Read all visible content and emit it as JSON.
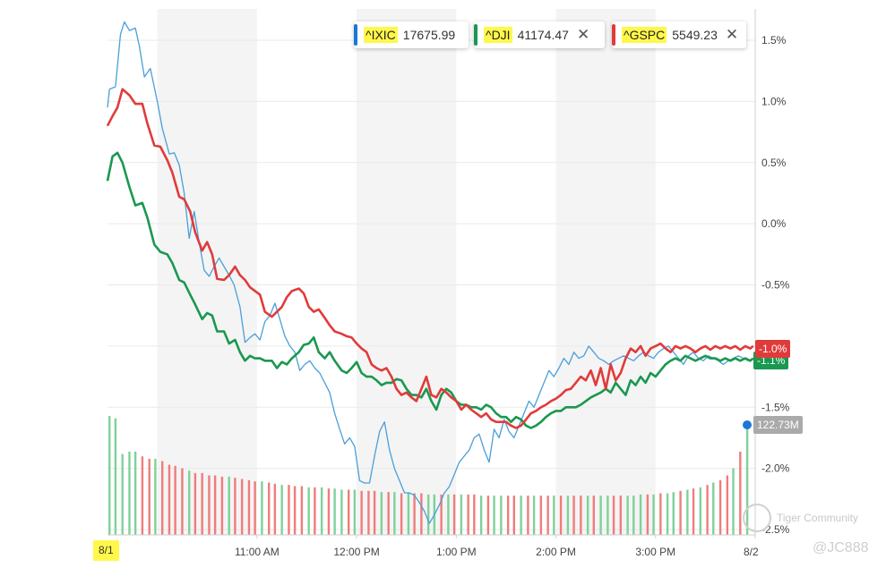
{
  "legend": [
    {
      "symbol": "^IXIC",
      "value": "17675.99",
      "color": "#1a78d6",
      "closable": false
    },
    {
      "symbol": "^DJI",
      "value": "41174.47",
      "color": "#1a9850",
      "closable": true
    },
    {
      "symbol": "^GSPC",
      "value": "5549.23",
      "color": "#e03b3b",
      "closable": true
    }
  ],
  "badges": {
    "red": "-1.0%",
    "green": "-1.1%",
    "volume": "122.73M"
  },
  "watermark": {
    "brand": "Tiger Community",
    "handle": "@JC888"
  },
  "chart_data": {
    "type": "line",
    "x_tick_labels": [
      "8/1",
      "11:00 AM",
      "12:00 PM",
      "1:00 PM",
      "2:00 PM",
      "3:00 PM",
      "8/2"
    ],
    "y_tick_labels": [
      "1.5%",
      "1.0%",
      "0.5%",
      "0.0%",
      "-0.5%",
      "-1.0%",
      "-1.5%",
      "-2.0%",
      "-2.5%"
    ],
    "ylim": [
      -2.5,
      1.75
    ],
    "x_range_hours": [
      9.5,
      16.0
    ],
    "grid": true,
    "series": [
      {
        "name": "^IXIC",
        "color": "#4a9fd9",
        "x": [
          9.5,
          9.52,
          9.58,
          9.63,
          9.67,
          9.72,
          9.78,
          9.82,
          9.87,
          9.93,
          10.0,
          10.05,
          10.12,
          10.17,
          10.22,
          10.27,
          10.32,
          10.37,
          10.42,
          10.47,
          10.52,
          10.57,
          10.62,
          10.67,
          10.72,
          10.77,
          10.83,
          10.88,
          10.93,
          10.98,
          11.03,
          11.08,
          11.13,
          11.18,
          11.23,
          11.28,
          11.33,
          11.38,
          11.43,
          11.48,
          11.53,
          11.58,
          11.63,
          11.68,
          11.73,
          11.78,
          11.83,
          11.88,
          11.93,
          11.98,
          12.03,
          12.08,
          12.13,
          12.18,
          12.23,
          12.28,
          12.33,
          12.38,
          12.43,
          12.48,
          12.53,
          12.58,
          12.63,
          12.68,
          12.73,
          12.78,
          12.83,
          12.88,
          12.93,
          12.98,
          13.03,
          13.08,
          13.13,
          13.18,
          13.23,
          13.28,
          13.33,
          13.38,
          13.43,
          13.48,
          13.53,
          13.58,
          13.63,
          13.68,
          13.73,
          13.78,
          13.83,
          13.88,
          13.93,
          13.98,
          14.03,
          14.08,
          14.13,
          14.18,
          14.23,
          14.28,
          14.33,
          14.38,
          14.43,
          14.48,
          14.53,
          14.58,
          14.63,
          14.68,
          14.73,
          14.78,
          14.83,
          14.88,
          14.93,
          14.98,
          15.03,
          15.08,
          15.13,
          15.18,
          15.23,
          15.28,
          15.33,
          15.38,
          15.43,
          15.48,
          15.53,
          15.58,
          15.63,
          15.68,
          15.73,
          15.78,
          15.83,
          15.88,
          15.93,
          15.98
        ],
        "values": [
          0.95,
          1.1,
          1.12,
          1.55,
          1.65,
          1.58,
          1.6,
          1.45,
          1.2,
          1.27,
          1.0,
          0.78,
          0.57,
          0.58,
          0.48,
          0.25,
          -0.12,
          0.1,
          -0.15,
          -0.38,
          -0.43,
          -0.35,
          -0.28,
          -0.35,
          -0.42,
          -0.5,
          -0.68,
          -0.97,
          -0.93,
          -0.9,
          -0.95,
          -0.8,
          -0.75,
          -0.65,
          -0.78,
          -0.92,
          -1.0,
          -1.05,
          -1.2,
          -1.15,
          -1.12,
          -1.18,
          -1.22,
          -1.3,
          -1.38,
          -1.55,
          -1.68,
          -1.8,
          -1.75,
          -1.82,
          -2.1,
          -2.12,
          -2.12,
          -1.9,
          -1.7,
          -1.62,
          -1.85,
          -2.0,
          -2.1,
          -2.2,
          -2.2,
          -2.22,
          -2.28,
          -2.35,
          -2.45,
          -2.38,
          -2.3,
          -2.2,
          -2.15,
          -2.05,
          -1.95,
          -1.9,
          -1.85,
          -1.75,
          -1.72,
          -1.85,
          -1.95,
          -1.68,
          -1.75,
          -1.6,
          -1.7,
          -1.75,
          -1.65,
          -1.55,
          -1.45,
          -1.5,
          -1.4,
          -1.3,
          -1.2,
          -1.25,
          -1.18,
          -1.1,
          -1.15,
          -1.05,
          -1.1,
          -1.08,
          -1.0,
          -1.05,
          -1.1,
          -1.12,
          -1.15,
          -1.12,
          -1.1,
          -1.08,
          -1.1,
          -1.12,
          -1.08,
          -1.05,
          -1.08,
          -1.1,
          -1.05,
          -1.02,
          -1.0,
          -1.05,
          -1.1,
          -1.15,
          -1.08,
          -1.05,
          -1.1,
          -1.12,
          -1.08,
          -1.1,
          -1.12,
          -1.15,
          -1.12,
          -1.1,
          -1.08,
          -1.1,
          -1.12,
          -1.1
        ]
      },
      {
        "name": "^DJI",
        "color": "#1a9850",
        "x": [
          9.5,
          9.55,
          9.6,
          9.65,
          9.72,
          9.78,
          9.85,
          9.9,
          9.97,
          10.03,
          10.1,
          10.15,
          10.22,
          10.27,
          10.33,
          10.38,
          10.45,
          10.5,
          10.55,
          10.6,
          10.67,
          10.72,
          10.78,
          10.83,
          10.88,
          10.93,
          10.98,
          11.03,
          11.08,
          11.15,
          11.2,
          11.25,
          11.3,
          11.35,
          11.42,
          11.47,
          11.52,
          11.57,
          11.62,
          11.68,
          11.73,
          11.78,
          11.85,
          11.9,
          11.95,
          12.0,
          12.05,
          12.1,
          12.15,
          12.2,
          12.25,
          12.3,
          12.35,
          12.4,
          12.45,
          12.5,
          12.55,
          12.6,
          12.65,
          12.7,
          12.75,
          12.8,
          12.85,
          12.9,
          12.95,
          13.0,
          13.05,
          13.1,
          13.15,
          13.2,
          13.25,
          13.3,
          13.35,
          13.4,
          13.45,
          13.5,
          13.55,
          13.6,
          13.65,
          13.7,
          13.75,
          13.8,
          13.85,
          13.9,
          13.95,
          14.0,
          14.05,
          14.1,
          14.15,
          14.2,
          14.25,
          14.3,
          14.35,
          14.4,
          14.45,
          14.5,
          14.55,
          14.6,
          14.65,
          14.7,
          14.75,
          14.8,
          14.85,
          14.9,
          14.95,
          15.0,
          15.05,
          15.1,
          15.15,
          15.2,
          15.25,
          15.3,
          15.35,
          15.4,
          15.45,
          15.5,
          15.55,
          15.6,
          15.65,
          15.7,
          15.75,
          15.8,
          15.85,
          15.9,
          15.95,
          15.98
        ],
        "values": [
          0.35,
          0.55,
          0.58,
          0.5,
          0.3,
          0.15,
          0.17,
          0.05,
          -0.17,
          -0.23,
          -0.25,
          -0.32,
          -0.46,
          -0.48,
          -0.58,
          -0.66,
          -0.78,
          -0.73,
          -0.75,
          -0.88,
          -0.88,
          -0.98,
          -0.95,
          -1.05,
          -1.12,
          -1.08,
          -1.1,
          -1.1,
          -1.12,
          -1.12,
          -1.18,
          -1.13,
          -1.15,
          -1.1,
          -1.05,
          -0.99,
          -0.98,
          -0.93,
          -1.05,
          -1.1,
          -1.05,
          -1.12,
          -1.2,
          -1.22,
          -1.18,
          -1.13,
          -1.22,
          -1.25,
          -1.25,
          -1.28,
          -1.32,
          -1.3,
          -1.3,
          -1.27,
          -1.28,
          -1.35,
          -1.4,
          -1.4,
          -1.42,
          -1.35,
          -1.45,
          -1.52,
          -1.4,
          -1.35,
          -1.38,
          -1.45,
          -1.48,
          -1.48,
          -1.5,
          -1.5,
          -1.52,
          -1.48,
          -1.5,
          -1.55,
          -1.58,
          -1.58,
          -1.62,
          -1.58,
          -1.6,
          -1.65,
          -1.67,
          -1.65,
          -1.62,
          -1.58,
          -1.55,
          -1.53,
          -1.53,
          -1.5,
          -1.5,
          -1.5,
          -1.48,
          -1.45,
          -1.42,
          -1.4,
          -1.38,
          -1.35,
          -1.38,
          -1.3,
          -1.35,
          -1.4,
          -1.28,
          -1.32,
          -1.25,
          -1.3,
          -1.22,
          -1.25,
          -1.2,
          -1.15,
          -1.12,
          -1.1,
          -1.12,
          -1.08,
          -1.1,
          -1.12,
          -1.1,
          -1.08,
          -1.1,
          -1.1,
          -1.12,
          -1.1,
          -1.12,
          -1.1,
          -1.12,
          -1.1,
          -1.12,
          -1.1
        ]
      },
      {
        "name": "^GSPC",
        "color": "#e03b3b",
        "x": [
          9.5,
          9.55,
          9.6,
          9.65,
          9.72,
          9.78,
          9.85,
          9.9,
          9.97,
          10.03,
          10.1,
          10.15,
          10.22,
          10.27,
          10.33,
          10.38,
          10.45,
          10.5,
          10.55,
          10.6,
          10.67,
          10.72,
          10.78,
          10.83,
          10.88,
          10.93,
          10.98,
          11.03,
          11.08,
          11.15,
          11.2,
          11.25,
          11.3,
          11.35,
          11.42,
          11.47,
          11.52,
          11.57,
          11.62,
          11.68,
          11.73,
          11.78,
          11.85,
          11.9,
          11.95,
          12.0,
          12.05,
          12.1,
          12.15,
          12.2,
          12.25,
          12.3,
          12.35,
          12.4,
          12.45,
          12.5,
          12.55,
          12.6,
          12.65,
          12.7,
          12.75,
          12.8,
          12.85,
          12.9,
          12.95,
          13.0,
          13.05,
          13.1,
          13.15,
          13.2,
          13.25,
          13.3,
          13.35,
          13.4,
          13.45,
          13.5,
          13.55,
          13.6,
          13.65,
          13.7,
          13.75,
          13.8,
          13.85,
          13.9,
          13.95,
          14.0,
          14.05,
          14.1,
          14.15,
          14.2,
          14.25,
          14.3,
          14.35,
          14.4,
          14.45,
          14.5,
          14.55,
          14.6,
          14.65,
          14.7,
          14.75,
          14.8,
          14.85,
          14.9,
          14.95,
          15.0,
          15.05,
          15.1,
          15.15,
          15.2,
          15.25,
          15.3,
          15.35,
          15.4,
          15.45,
          15.5,
          15.55,
          15.6,
          15.65,
          15.7,
          15.75,
          15.8,
          15.85,
          15.9,
          15.95,
          15.98
        ],
        "values": [
          0.8,
          0.88,
          0.95,
          1.1,
          1.05,
          0.98,
          0.98,
          0.82,
          0.64,
          0.63,
          0.52,
          0.42,
          0.22,
          0.2,
          0.1,
          -0.07,
          -0.22,
          -0.15,
          -0.25,
          -0.45,
          -0.46,
          -0.42,
          -0.35,
          -0.42,
          -0.46,
          -0.52,
          -0.55,
          -0.58,
          -0.72,
          -0.76,
          -0.72,
          -0.68,
          -0.6,
          -0.55,
          -0.53,
          -0.57,
          -0.68,
          -0.72,
          -0.7,
          -0.77,
          -0.83,
          -0.88,
          -0.9,
          -0.92,
          -0.93,
          -0.98,
          -1.02,
          -1.05,
          -1.15,
          -1.18,
          -1.2,
          -1.18,
          -1.25,
          -1.35,
          -1.4,
          -1.38,
          -1.42,
          -1.45,
          -1.35,
          -1.25,
          -1.4,
          -1.42,
          -1.35,
          -1.38,
          -1.42,
          -1.45,
          -1.52,
          -1.48,
          -1.52,
          -1.55,
          -1.58,
          -1.55,
          -1.6,
          -1.62,
          -1.62,
          -1.62,
          -1.65,
          -1.67,
          -1.65,
          -1.6,
          -1.55,
          -1.53,
          -1.5,
          -1.48,
          -1.45,
          -1.43,
          -1.4,
          -1.36,
          -1.35,
          -1.3,
          -1.25,
          -1.28,
          -1.2,
          -1.32,
          -1.18,
          -1.35,
          -1.15,
          -1.28,
          -1.22,
          -1.1,
          -1.02,
          -1.05,
          -1.0,
          -1.08,
          -1.02,
          -1.0,
          -0.98,
          -1.02,
          -1.05,
          -1.0,
          -1.02,
          -1.0,
          -1.02,
          -1.05,
          -1.02,
          -1.0,
          -1.03,
          -1.0,
          -1.02,
          -1.0,
          -1.02,
          -1.0,
          -1.03,
          -1.0,
          -1.02,
          -1.0
        ]
      }
    ],
    "volume": {
      "x": [
        9.52,
        9.58,
        9.65,
        9.72,
        9.78,
        9.85,
        9.92,
        9.98,
        10.05,
        10.12,
        10.18,
        10.25,
        10.32,
        10.38,
        10.45,
        10.52,
        10.58,
        10.65,
        10.72,
        10.78,
        10.85,
        10.92,
        10.98,
        11.05,
        11.12,
        11.18,
        11.25,
        11.32,
        11.38,
        11.45,
        11.52,
        11.58,
        11.65,
        11.72,
        11.78,
        11.85,
        11.92,
        11.98,
        12.05,
        12.12,
        12.18,
        12.25,
        12.32,
        12.38,
        12.45,
        12.52,
        12.58,
        12.65,
        12.72,
        12.78,
        12.85,
        12.92,
        12.98,
        13.05,
        13.12,
        13.18,
        13.25,
        13.32,
        13.38,
        13.45,
        13.52,
        13.58,
        13.65,
        13.72,
        13.78,
        13.85,
        13.92,
        13.98,
        14.05,
        14.12,
        14.18,
        14.25,
        14.32,
        14.38,
        14.45,
        14.52,
        14.58,
        14.65,
        14.72,
        14.78,
        14.85,
        14.92,
        14.98,
        15.05,
        15.12,
        15.18,
        15.25,
        15.32,
        15.38,
        15.45,
        15.52,
        15.58,
        15.65,
        15.72,
        15.78,
        15.85,
        15.92
      ],
      "values": [
        100,
        98,
        68,
        70,
        70,
        66,
        64,
        64,
        62,
        59,
        58,
        56,
        54,
        52,
        52,
        50,
        50,
        49,
        49,
        48,
        47,
        46,
        45,
        45,
        44,
        43,
        42,
        42,
        41,
        41,
        40,
        40,
        40,
        39,
        39,
        38,
        38,
        38,
        37,
        37,
        37,
        36,
        36,
        36,
        35,
        35,
        35,
        35,
        34,
        34,
        34,
        34,
        34,
        34,
        34,
        34,
        33,
        33,
        33,
        33,
        33,
        33,
        33,
        33,
        33,
        33,
        33,
        33,
        33,
        33,
        33,
        33,
        33,
        33,
        33,
        33,
        33,
        33,
        33,
        33,
        34,
        34,
        34,
        35,
        35,
        36,
        37,
        38,
        39,
        40,
        42,
        44,
        46,
        50,
        56,
        70,
        95
      ],
      "up": [
        true,
        true,
        true,
        true,
        true,
        false,
        false,
        true,
        false,
        false,
        false,
        false,
        true,
        false,
        false,
        false,
        false,
        false,
        true,
        false,
        false,
        false,
        false,
        true,
        false,
        false,
        true,
        false,
        false,
        false,
        true,
        false,
        true,
        false,
        true,
        true,
        false,
        true,
        false,
        false,
        false,
        true,
        false,
        true,
        false,
        true,
        false,
        false,
        true,
        true,
        false,
        true,
        false,
        true,
        false,
        false,
        true,
        false,
        true,
        true,
        false,
        false,
        true,
        false,
        true,
        false,
        false,
        true,
        false,
        true,
        false,
        false,
        true,
        false,
        true,
        true,
        false,
        false,
        true,
        true,
        true,
        false,
        true,
        false,
        true,
        true,
        false,
        true,
        false,
        true,
        false,
        true,
        false,
        false,
        true,
        false,
        true
      ]
    }
  }
}
